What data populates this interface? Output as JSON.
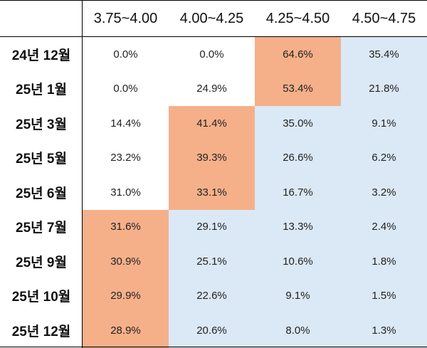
{
  "chart_data": {
    "type": "table",
    "columns": [
      "3.75~4.00",
      "4.00~4.25",
      "4.25~4.50",
      "4.50~4.75"
    ],
    "rows": [
      {
        "label": "24년 12월",
        "values": [
          "0.0%",
          "0.0%",
          "64.6%",
          "35.4%"
        ]
      },
      {
        "label": "25년 1월",
        "values": [
          "0.0%",
          "24.9%",
          "53.4%",
          "21.8%"
        ]
      },
      {
        "label": "25년 3월",
        "values": [
          "14.4%",
          "41.4%",
          "35.0%",
          "9.1%"
        ]
      },
      {
        "label": "25년 5월",
        "values": [
          "23.2%",
          "39.3%",
          "26.6%",
          "6.2%"
        ]
      },
      {
        "label": "25년 6월",
        "values": [
          "31.0%",
          "33.1%",
          "16.7%",
          "3.2%"
        ]
      },
      {
        "label": "25년 7월",
        "values": [
          "31.6%",
          "29.1%",
          "13.3%",
          "2.4%"
        ]
      },
      {
        "label": "25년 9월",
        "values": [
          "30.9%",
          "25.1%",
          "10.6%",
          "1.8%"
        ]
      },
      {
        "label": "25년 10월",
        "values": [
          "29.9%",
          "22.6%",
          "9.1%",
          "1.5%"
        ]
      },
      {
        "label": "25년 12월",
        "values": [
          "28.9%",
          "20.6%",
          "8.0%",
          "1.3%"
        ]
      }
    ],
    "highlight_max_column_index": [
      2,
      2,
      1,
      1,
      1,
      0,
      0,
      0,
      0
    ],
    "colors": {
      "highlight": "#f5b08a",
      "above": "#dbe8f5",
      "below": "#ffffff"
    }
  }
}
